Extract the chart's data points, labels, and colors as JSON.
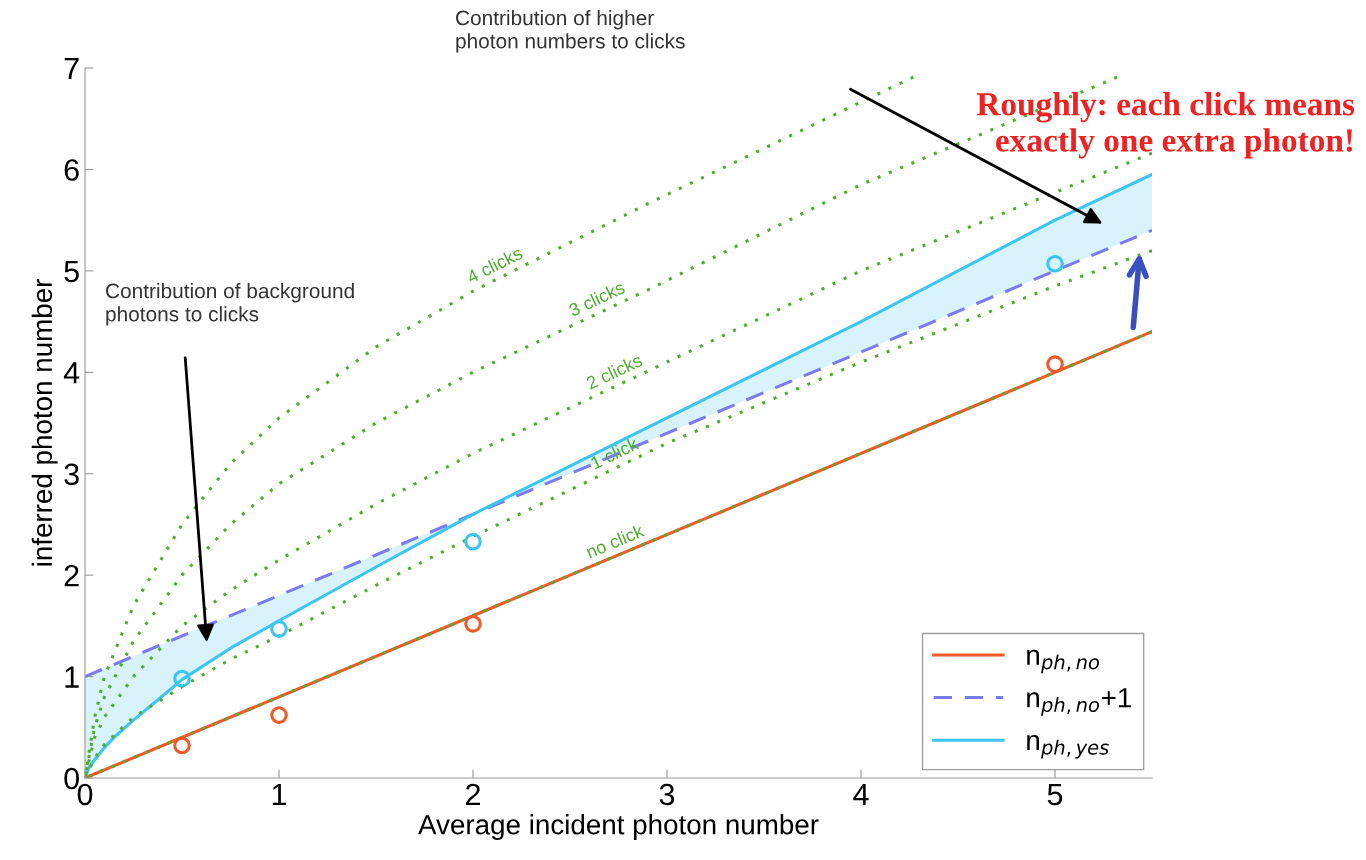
{
  "chart_data": {
    "type": "line",
    "xlabel": "Average incident photon number",
    "ylabel": "inferred photon number",
    "xlim": [
      0,
      5.5
    ],
    "ylim": [
      0,
      7
    ],
    "xticks": [
      0,
      1,
      2,
      3,
      4,
      5
    ],
    "yticks": [
      0,
      1,
      2,
      3,
      4,
      5,
      6,
      7
    ],
    "grid": false,
    "legend": "bottom right",
    "series": [
      {
        "name": "n$_{ph,no}$",
        "color": "#f05a28",
        "line_style": "solid",
        "x": [
          0,
          5.5
        ],
        "values": [
          0,
          4.4
        ]
      },
      {
        "name": "n$_{ph,no}$+1",
        "color": "#7b7bf0",
        "line_style": "dashed",
        "x": [
          0,
          5.5
        ],
        "values": [
          1,
          5.4
        ]
      },
      {
        "name": "n$_{ph,yes}$",
        "color": "#3cc4f2",
        "line_style": "solid",
        "x": [
          0,
          0.02,
          0.05,
          0.1,
          0.15,
          0.25,
          0.35,
          0.5,
          0.75,
          1,
          1.5,
          2,
          3,
          4,
          5,
          5.5
        ],
        "values": [
          0,
          0.1,
          0.18,
          0.3,
          0.4,
          0.57,
          0.73,
          0.97,
          1.28,
          1.55,
          2.08,
          2.6,
          3.55,
          4.5,
          5.5,
          5.95
        ],
        "lower": [
          1,
          1.016,
          1.04,
          1.08,
          1.12,
          1.2,
          1.28,
          1.4,
          1.6,
          1.8,
          2.2,
          2.6,
          3.4,
          4.2,
          5.0,
          5.4
        ],
        "upper": [
          0,
          0.1,
          0.18,
          0.3,
          0.4,
          0.57,
          0.73,
          0.97,
          1.28,
          1.55,
          2.08,
          2.6,
          3.55,
          4.5,
          5.5,
          5.95
        ]
      },
      {
        "name": "4 clicks",
        "color": "#4fac2e",
        "line_style": "dotted",
        "x": [
          0,
          0.05,
          0.1,
          0.25,
          0.5,
          0.75,
          1,
          1.5,
          2,
          2.91,
          4.27
        ],
        "values": [
          0,
          0.6,
          1.0,
          1.7,
          2.5,
          3.1,
          3.55,
          4.25,
          4.8,
          5.67,
          6.91
        ]
      },
      {
        "name": "3 clicks",
        "color": "#4fac2e",
        "line_style": "dotted",
        "x": [
          0,
          0.05,
          0.1,
          0.25,
          0.5,
          0.75,
          1,
          1.5,
          2,
          2.91,
          4,
          5.32
        ],
        "values": [
          0,
          0.5,
          0.8,
          1.35,
          2.0,
          2.5,
          2.9,
          3.5,
          4.0,
          4.82,
          5.85,
          6.91
        ]
      },
      {
        "name": "2 clicks",
        "color": "#4fac2e",
        "line_style": "dotted",
        "x": [
          0,
          0.05,
          0.1,
          0.25,
          0.5,
          0.75,
          1,
          1.5,
          2,
          2.91,
          4,
          5.5
        ],
        "values": [
          0,
          0.4,
          0.6,
          1.0,
          1.5,
          1.85,
          2.15,
          2.7,
          3.2,
          4.02,
          5.0,
          6.16
        ]
      },
      {
        "name": "1 click",
        "color": "#4fac2e",
        "line_style": "dotted",
        "x": [
          0,
          0.05,
          0.1,
          0.25,
          0.5,
          0.75,
          1,
          1.5,
          2,
          3,
          4,
          5,
          5.5
        ],
        "values": [
          0,
          0.2,
          0.33,
          0.6,
          0.9,
          1.17,
          1.4,
          1.9,
          2.38,
          3.3,
          4.1,
          4.85,
          5.2
        ]
      },
      {
        "name": "no click",
        "color": "#4fac2e",
        "line_style": "dotted",
        "x": [
          0,
          5.5
        ],
        "values": [
          0,
          4.4
        ]
      },
      {
        "type": "scatter",
        "marker": "circle",
        "color": "#f05a28",
        "x": [
          0.5,
          1,
          2,
          5
        ],
        "values": [
          0.32,
          0.62,
          1.52,
          4.08
        ]
      },
      {
        "type": "scatter",
        "marker": "circle",
        "color": "#3cc4f2",
        "x": [
          0.5,
          1,
          2,
          5
        ],
        "values": [
          0.98,
          1.47,
          2.33,
          5.07
        ]
      }
    ],
    "annotations": [
      "Contribution of background\nphotons to clicks",
      "Contribution of higher\nphoton numbers to clicks",
      "Roughly: each click means\nexactly one extra photon!"
    ]
  }
}
